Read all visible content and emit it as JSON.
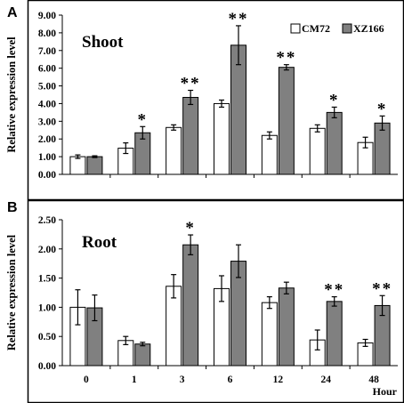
{
  "chart_data": [
    {
      "type": "bar",
      "panel_label": "A",
      "title": "Shoot",
      "ylabel": "Relative expression level",
      "xlabel": "",
      "ylim": [
        0,
        9
      ],
      "yticks": [
        "0.00",
        "1.00",
        "2.00",
        "3.00",
        "4.00",
        "5.00",
        "6.00",
        "7.00",
        "8.00",
        "9.00"
      ],
      "categories": [
        "0",
        "1",
        "3",
        "6",
        "12",
        "24",
        "48"
      ],
      "show_category_labels": false,
      "legend": "top-right",
      "series": [
        {
          "name": "CM72",
          "color": "#ffffff",
          "values": [
            1.0,
            1.48,
            2.65,
            4.0,
            2.2,
            2.6,
            1.8
          ],
          "errors": [
            0.1,
            0.3,
            0.15,
            0.2,
            0.2,
            0.2,
            0.3
          ]
        },
        {
          "name": "XZ166",
          "color": "#808080",
          "values": [
            1.0,
            2.35,
            4.35,
            7.3,
            6.05,
            3.5,
            2.9
          ],
          "errors": [
            0.05,
            0.35,
            0.4,
            1.1,
            0.15,
            0.3,
            0.4
          ]
        }
      ],
      "significance": [
        "",
        "*",
        "**",
        "**",
        "**",
        "*",
        "*"
      ]
    },
    {
      "type": "bar",
      "panel_label": "B",
      "title": "Root",
      "ylabel": "Relative expression level",
      "xlabel": "Hour",
      "ylim": [
        0,
        2.5
      ],
      "yticks": [
        "0.00",
        "0.50",
        "1.00",
        "1.50",
        "2.00",
        "2.50"
      ],
      "categories": [
        "0",
        "1",
        "3",
        "6",
        "12",
        "24",
        "48"
      ],
      "show_category_labels": true,
      "series": [
        {
          "name": "CM72",
          "color": "#ffffff",
          "values": [
            1.0,
            0.43,
            1.36,
            1.32,
            1.08,
            0.44,
            0.39
          ],
          "errors": [
            0.3,
            0.07,
            0.2,
            0.22,
            0.1,
            0.17,
            0.06
          ]
        },
        {
          "name": "XZ166",
          "color": "#808080",
          "values": [
            0.99,
            0.37,
            2.07,
            1.79,
            1.33,
            1.1,
            1.03
          ],
          "errors": [
            0.22,
            0.03,
            0.17,
            0.28,
            0.1,
            0.08,
            0.17
          ]
        }
      ],
      "significance": [
        "",
        "",
        "*",
        "",
        "",
        "**",
        "**"
      ]
    }
  ]
}
